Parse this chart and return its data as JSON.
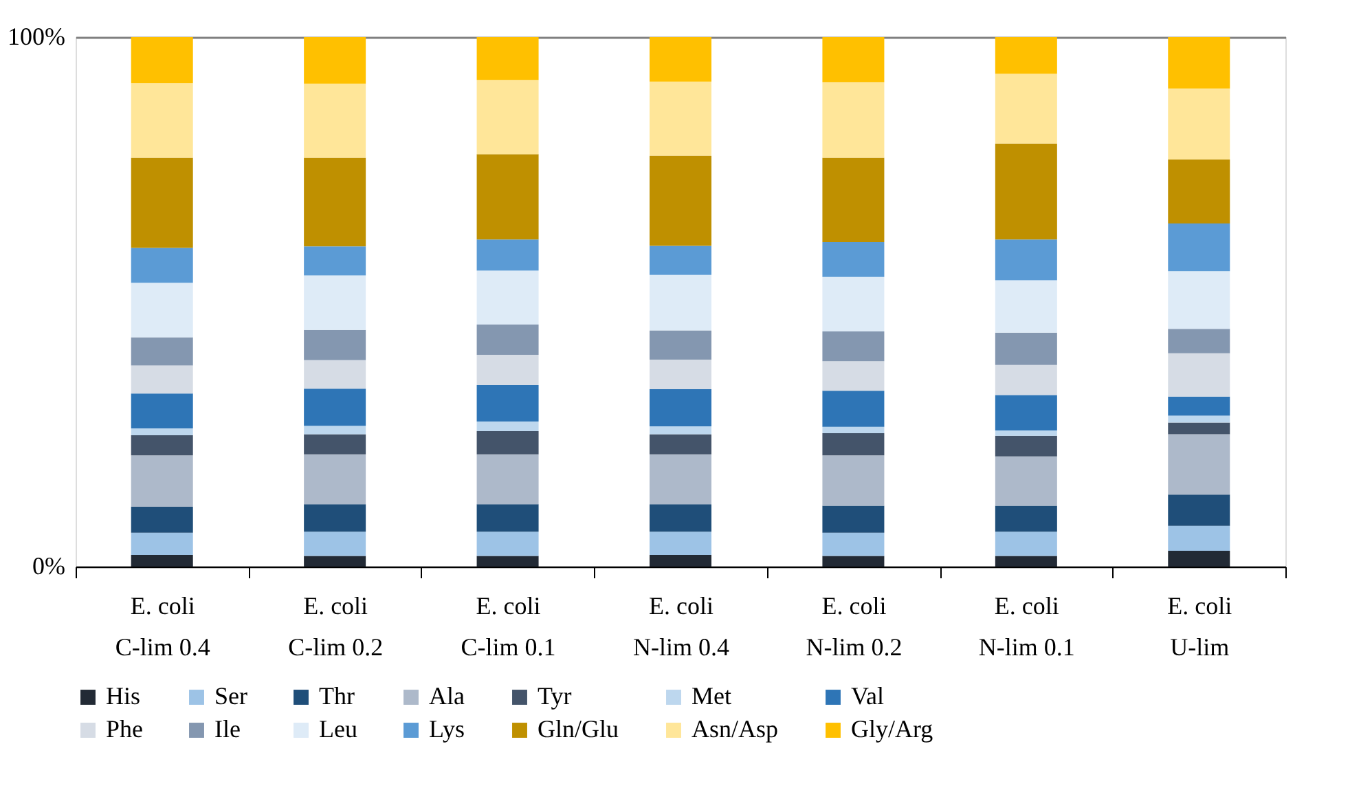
{
  "chart_data": {
    "type": "bar",
    "stacked": true,
    "categories": [
      "E. coli\nC-lim 0.4",
      "E. coli\nC-lim 0.2",
      "E. coli\nC-lim 0.1",
      "E. coli\nN-lim 0.4",
      "E. coli\nN-lim 0.2",
      "E. coli\nN-lim 0.1",
      "E. coli\nU-lim"
    ],
    "series": [
      {
        "name": "His",
        "color": "#222a35",
        "values": [
          2.2,
          2.0,
          2.0,
          2.2,
          2.0,
          2.0,
          3.0
        ]
      },
      {
        "name": "Ser",
        "color": "#9dc3e6",
        "values": [
          4.2,
          4.6,
          4.6,
          4.4,
          4.4,
          4.6,
          4.7
        ]
      },
      {
        "name": "Thr",
        "color": "#1f4e79",
        "values": [
          4.9,
          5.2,
          5.2,
          5.2,
          5.1,
          4.9,
          5.9
        ]
      },
      {
        "name": "Ala",
        "color": "#adb9ca",
        "values": [
          9.7,
          9.4,
          9.4,
          9.4,
          9.5,
          9.3,
          11.4
        ]
      },
      {
        "name": "Tyr",
        "color": "#44546a",
        "values": [
          3.8,
          3.8,
          4.4,
          3.8,
          4.2,
          3.9,
          2.2
        ]
      },
      {
        "name": "Met",
        "color": "#bdd7ee",
        "values": [
          1.3,
          1.6,
          1.8,
          1.5,
          1.2,
          1.0,
          1.3
        ]
      },
      {
        "name": "Val",
        "color": "#2e75b6",
        "values": [
          6.6,
          7.0,
          6.9,
          7.0,
          6.8,
          6.7,
          3.6
        ]
      },
      {
        "name": "Phe",
        "color": "#d6dce5",
        "values": [
          5.3,
          5.4,
          5.7,
          5.6,
          5.6,
          5.7,
          8.2
        ]
      },
      {
        "name": "Ile",
        "color": "#8497b0",
        "values": [
          5.3,
          5.7,
          5.7,
          5.5,
          5.6,
          6.1,
          4.6
        ]
      },
      {
        "name": "Leu",
        "color": "#deebf7",
        "values": [
          10.3,
          10.3,
          10.2,
          10.5,
          10.3,
          9.9,
          10.9
        ]
      },
      {
        "name": "Lys",
        "color": "#5b9bd5",
        "values": [
          6.6,
          5.5,
          5.9,
          5.5,
          6.6,
          7.7,
          9.0
        ]
      },
      {
        "name": "Gln/Glu",
        "color": "#bf9000",
        "values": [
          17.0,
          16.7,
          16.1,
          17.0,
          15.9,
          18.1,
          12.1
        ]
      },
      {
        "name": "Asn/Asp",
        "color": "#ffe699",
        "values": [
          14.1,
          14.0,
          14.0,
          14.0,
          14.3,
          13.2,
          13.4
        ]
      },
      {
        "name": "Gly/Arg",
        "color": "#ffc000",
        "values": [
          8.7,
          8.8,
          8.1,
          8.4,
          8.5,
          6.9,
          9.7
        ]
      }
    ],
    "ylim": [
      0,
      100
    ],
    "yticks": [
      {
        "value": 0,
        "label": "0%"
      },
      {
        "value": 100,
        "label": "100%"
      }
    ],
    "grid": "y",
    "legend": "bottom"
  }
}
